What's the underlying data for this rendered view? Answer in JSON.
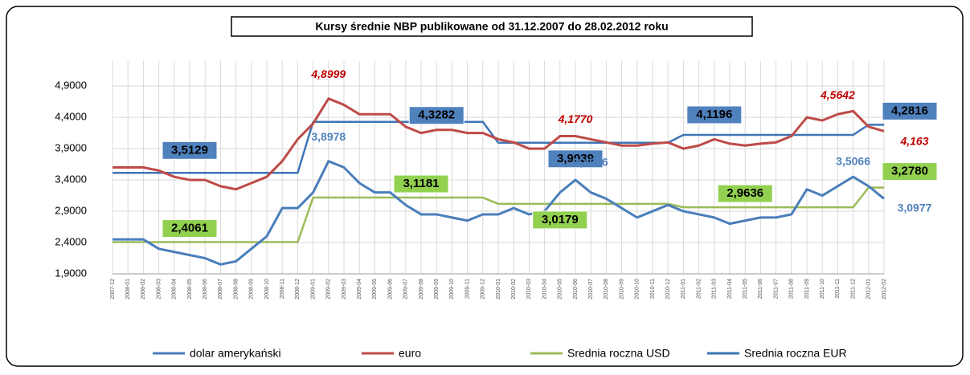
{
  "chart_data": {
    "type": "line",
    "title": "Kursy średnie NBP publikowane od 31.12.2007 do 28.02.2012 roku",
    "categories": [
      "2007-12",
      "2008-01",
      "2008-02",
      "2008-03",
      "2008-04",
      "2008-05",
      "2008-06",
      "2008-07",
      "2008-08",
      "2008-09",
      "2008-10",
      "2008-11",
      "2008-12",
      "2009-01",
      "2009-02",
      "2009-03",
      "2009-04",
      "2009-05",
      "2009-06",
      "2009-07",
      "2009-08",
      "2009-09",
      "2009-10",
      "2009-11",
      "2009-12",
      "2010-01",
      "2010-02",
      "2010-03",
      "2010-04",
      "2010-05",
      "2010-06",
      "2010-07",
      "2010-08",
      "2010-09",
      "2010-10",
      "2010-11",
      "2010-12",
      "2011-01",
      "2011-02",
      "2011-03",
      "2011-04",
      "2011-05",
      "2011-06",
      "2011-07",
      "2011-08",
      "2011-09",
      "2011-10",
      "2011-11",
      "2011-12",
      "2012-01",
      "2012-02"
    ],
    "series": [
      {
        "name": "dolar amerykański",
        "color": "#4a7ebb",
        "values": [
          2.45,
          2.45,
          2.45,
          2.3,
          2.25,
          2.2,
          2.15,
          2.05,
          2.1,
          2.3,
          2.5,
          2.95,
          2.95,
          3.2,
          3.7,
          3.6,
          3.35,
          3.2,
          3.2,
          3.0,
          2.85,
          2.85,
          2.8,
          2.75,
          2.85,
          2.85,
          2.95,
          2.85,
          2.9,
          3.2,
          3.4,
          3.2,
          3.1,
          2.95,
          2.8,
          2.9,
          3.0,
          2.9,
          2.85,
          2.8,
          2.7,
          2.75,
          2.8,
          2.8,
          2.85,
          3.25,
          3.15,
          3.3,
          3.45,
          3.3,
          3.1
        ]
      },
      {
        "name": "euro",
        "color": "#be4b48",
        "values": [
          3.6,
          3.6,
          3.6,
          3.55,
          3.45,
          3.4,
          3.4,
          3.3,
          3.25,
          3.35,
          3.45,
          3.7,
          4.05,
          4.3,
          4.7,
          4.6,
          4.45,
          4.45,
          4.45,
          4.25,
          4.15,
          4.2,
          4.2,
          4.15,
          4.15,
          4.05,
          4.0,
          3.9,
          3.9,
          4.1,
          4.1,
          4.05,
          4.0,
          3.95,
          3.95,
          3.98,
          4.0,
          3.9,
          3.95,
          4.05,
          3.98,
          3.95,
          3.98,
          4.0,
          4.1,
          4.4,
          4.35,
          4.45,
          4.5,
          4.25,
          4.18
        ]
      },
      {
        "name": "Srednia roczna USD",
        "color": "#9bbb59",
        "label_fill": "#92d050",
        "values": [
          2.4061,
          2.4061,
          2.4061,
          2.4061,
          2.4061,
          2.4061,
          2.4061,
          2.4061,
          2.4061,
          2.4061,
          2.4061,
          2.4061,
          2.4061,
          3.1181,
          3.1181,
          3.1181,
          3.1181,
          3.1181,
          3.1181,
          3.1181,
          3.1181,
          3.1181,
          3.1181,
          3.1181,
          3.1181,
          3.0179,
          3.0179,
          3.0179,
          3.0179,
          3.0179,
          3.0179,
          3.0179,
          3.0179,
          3.0179,
          3.0179,
          3.0179,
          3.0179,
          2.9636,
          2.9636,
          2.9636,
          2.9636,
          2.9636,
          2.9636,
          2.9636,
          2.9636,
          2.9636,
          2.9636,
          2.9636,
          2.9636,
          3.278,
          3.278
        ],
        "value_labels": [
          null,
          null,
          null,
          null,
          null,
          "2,4061",
          null,
          null,
          null,
          null,
          null,
          null,
          null,
          null,
          null,
          null,
          null,
          null,
          null,
          null,
          "3,1181",
          null,
          null,
          null,
          null,
          null,
          null,
          null,
          null,
          "3,0179",
          null,
          null,
          null,
          null,
          null,
          null,
          null,
          null,
          null,
          null,
          null,
          "2,9636",
          null,
          null,
          null,
          null,
          null,
          null,
          null,
          null,
          "3,2780"
        ]
      },
      {
        "name": "Srednia roczna EUR",
        "color": "#3f74b5",
        "label_fill": "#4f81bd",
        "values": [
          3.5129,
          3.5129,
          3.5129,
          3.5129,
          3.5129,
          3.5129,
          3.5129,
          3.5129,
          3.5129,
          3.5129,
          3.5129,
          3.5129,
          3.5129,
          4.3282,
          4.3282,
          4.3282,
          4.3282,
          4.3282,
          4.3282,
          4.3282,
          4.3282,
          4.3282,
          4.3282,
          4.3282,
          4.3282,
          3.9939,
          3.9939,
          3.9939,
          3.9939,
          3.9939,
          3.9939,
          3.9939,
          3.9939,
          3.9939,
          3.9939,
          3.9939,
          3.9939,
          4.1196,
          4.1196,
          4.1196,
          4.1196,
          4.1196,
          4.1196,
          4.1196,
          4.1196,
          4.1196,
          4.1196,
          4.1196,
          4.1196,
          4.2816,
          4.2816
        ],
        "value_labels": [
          null,
          null,
          null,
          null,
          null,
          "3,5129",
          null,
          null,
          null,
          null,
          null,
          null,
          null,
          null,
          null,
          null,
          null,
          null,
          null,
          null,
          null,
          "4,3282",
          null,
          null,
          null,
          null,
          null,
          null,
          null,
          null,
          "3,9939",
          null,
          null,
          null,
          null,
          null,
          null,
          null,
          null,
          "4,1196",
          null,
          null,
          null,
          null,
          null,
          null,
          null,
          null,
          null,
          null,
          "4,2816"
        ]
      }
    ],
    "annotations": [
      {
        "label": "4,8999",
        "value": 4.8999,
        "x": "2009-02",
        "color": "#c00000"
      },
      {
        "label": "3,8978",
        "value": 3.8978,
        "x": "2009-02",
        "color": "#4f81bd"
      },
      {
        "label": "4,1770",
        "value": 4.177,
        "x": "2010-06",
        "color": "#c00000"
      },
      {
        "label": "3,4916",
        "value": 3.4916,
        "x": "2010-07",
        "color": "#4f81bd"
      },
      {
        "label": "4,5642",
        "value": 4.5642,
        "x": "2011-11",
        "color": "#c00000"
      },
      {
        "label": "3,5066",
        "value": 3.5066,
        "x": "2011-12",
        "color": "#4f81bd"
      },
      {
        "label": "4,163",
        "value": 4.163,
        "x": "2012-02",
        "color": "#c00000"
      },
      {
        "label": "3,0977",
        "value": 3.0977,
        "x": "2012-02",
        "color": "#4f81bd"
      }
    ],
    "ylim": [
      1.9,
      5.3
    ],
    "yticks": [
      {
        "value": 1.9,
        "label": "1,9000"
      },
      {
        "value": 2.4,
        "label": "2,4000"
      },
      {
        "value": 2.9,
        "label": "2,9000"
      },
      {
        "value": 3.4,
        "label": "3,4000"
      },
      {
        "value": 3.9,
        "label": "3,9000"
      },
      {
        "value": 4.4,
        "label": "4,4000"
      },
      {
        "value": 4.9,
        "label": "4,9000"
      }
    ],
    "grid": true,
    "legend": "bottom"
  }
}
